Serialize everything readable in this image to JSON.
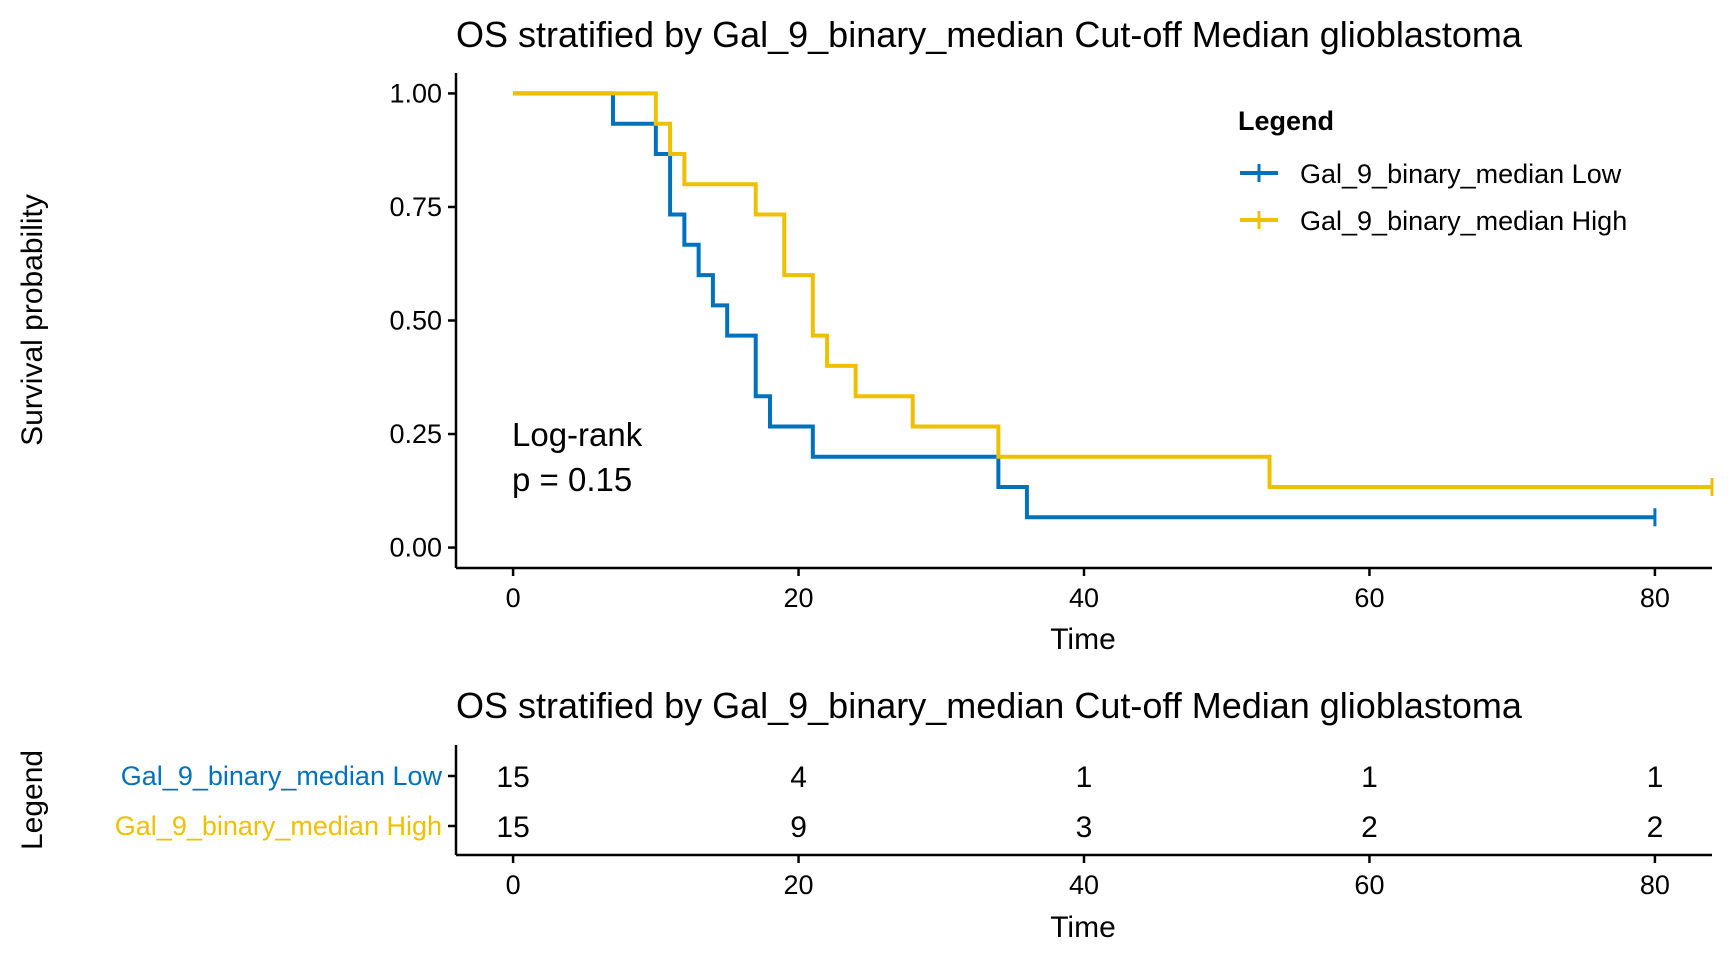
{
  "chart_data": {
    "type": "line",
    "title": "OS stratified by Gal_9_binary_median Cut-off Median glioblastoma",
    "xlabel": "Time",
    "ylabel": "Survival probability",
    "xlim": [
      -4,
      84
    ],
    "ylim": [
      -0.045,
      1.045
    ],
    "x_ticks": [
      0,
      20,
      40,
      60,
      80
    ],
    "y_ticks": [
      "0.00",
      "0.25",
      "0.50",
      "0.75",
      "1.00"
    ],
    "legend": {
      "title": "Legend",
      "position": "top-right"
    },
    "annotation": [
      "Log-rank",
      "p = 0.15"
    ],
    "series": [
      {
        "name": "Gal_9_binary_median Low",
        "color": "#0072BD",
        "steps": [
          [
            0,
            1.0
          ],
          [
            7,
            0.9333
          ],
          [
            10,
            0.8667
          ],
          [
            11,
            0.7333
          ],
          [
            12,
            0.6667
          ],
          [
            13,
            0.6
          ],
          [
            14,
            0.5333
          ],
          [
            15,
            0.4667
          ],
          [
            17,
            0.3333
          ],
          [
            18,
            0.2667
          ],
          [
            21,
            0.2
          ],
          [
            34,
            0.1333
          ],
          [
            36,
            0.0667
          ]
        ],
        "end_x": 80,
        "censored": [
          80
        ]
      },
      {
        "name": "Gal_9_binary_median High",
        "color": "#EFC000",
        "steps": [
          [
            0,
            1.0
          ],
          [
            10,
            0.9333
          ],
          [
            11,
            0.8667
          ],
          [
            12,
            0.8
          ],
          [
            17,
            0.7333
          ],
          [
            19,
            0.6
          ],
          [
            21,
            0.4667
          ],
          [
            22,
            0.4
          ],
          [
            24,
            0.3333
          ],
          [
            28,
            0.2667
          ],
          [
            34,
            0.2
          ],
          [
            53,
            0.1333
          ]
        ],
        "end_x": 84,
        "censored": [
          84
        ]
      }
    ],
    "risk_table": {
      "title": "OS stratified by Gal_9_binary_median Cut-off Median glioblastoma",
      "ylabel": "Legend",
      "xlabel": "Time",
      "times": [
        0,
        20,
        40,
        60,
        80
      ],
      "rows": [
        {
          "name": "Gal_9_binary_median Low",
          "color": "#0072BD",
          "counts": [
            15,
            4,
            1,
            1,
            1
          ]
        },
        {
          "name": "Gal_9_binary_median High",
          "color": "#EFC000",
          "counts": [
            15,
            9,
            3,
            2,
            2
          ]
        }
      ]
    }
  }
}
